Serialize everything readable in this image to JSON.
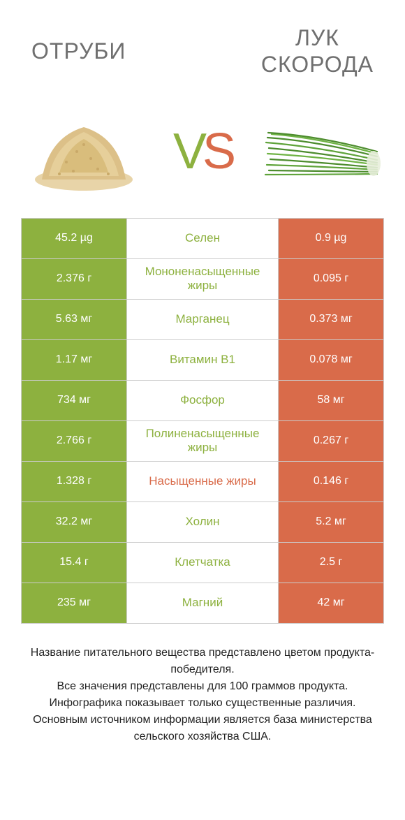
{
  "titles": {
    "left": "ОТРУБИ",
    "right": "ЛУК\nСКОРОДА"
  },
  "vs": {
    "v": "V",
    "s": "S"
  },
  "colors": {
    "green": "#8db13f",
    "orange": "#d96b4a",
    "mid_green_text": "#8db13f",
    "mid_orange_text": "#d96b4a"
  },
  "rows": [
    {
      "left": "45.2 µg",
      "mid": "Селен",
      "right": "0.9 µg",
      "mid_color": "green"
    },
    {
      "left": "2.376 г",
      "mid": "Мононенасыщенные жиры",
      "right": "0.095 г",
      "mid_color": "green"
    },
    {
      "left": "5.63 мг",
      "mid": "Марганец",
      "right": "0.373 мг",
      "mid_color": "green"
    },
    {
      "left": "1.17 мг",
      "mid": "Витамин B1",
      "right": "0.078 мг",
      "mid_color": "green"
    },
    {
      "left": "734 мг",
      "mid": "Фосфор",
      "right": "58 мг",
      "mid_color": "green"
    },
    {
      "left": "2.766 г",
      "mid": "Полиненасыщенные жиры",
      "right": "0.267 г",
      "mid_color": "green"
    },
    {
      "left": "1.328 г",
      "mid": "Насыщенные жиры",
      "right": "0.146 г",
      "mid_color": "orange"
    },
    {
      "left": "32.2 мг",
      "mid": "Холин",
      "right": "5.2 мг",
      "mid_color": "green"
    },
    {
      "left": "15.4 г",
      "mid": "Клетчатка",
      "right": "2.5 г",
      "mid_color": "green"
    },
    {
      "left": "235 мг",
      "mid": "Магний",
      "right": "42 мг",
      "mid_color": "green"
    }
  ],
  "footer": [
    "Название питательного вещества представлено цветом продукта-победителя.",
    "Все значения представлены для 100 граммов продукта.",
    "Инфографика показывает только существенные различия.",
    "Основным источником информации является база министерства сельского хозяйства США."
  ]
}
